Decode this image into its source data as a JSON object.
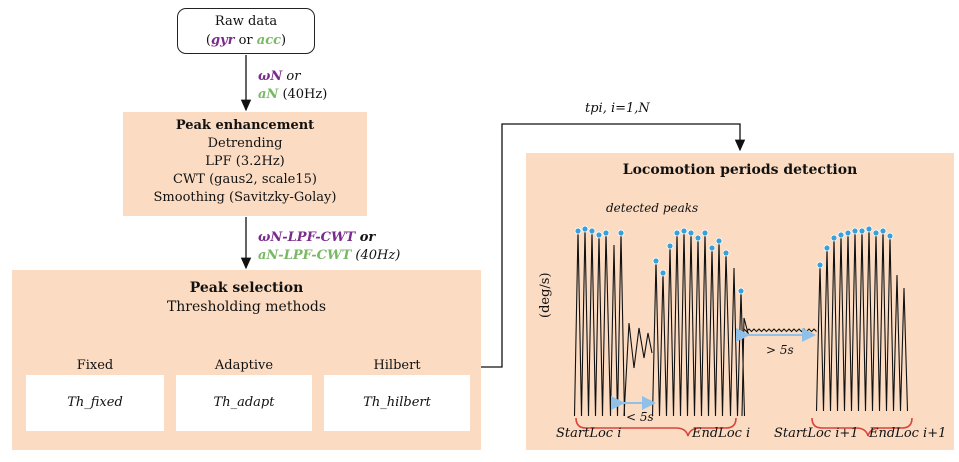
{
  "raw": {
    "title": "Raw data",
    "open": "(",
    "gyr": "gyr",
    "or": " or ",
    "acc": "acc",
    "close": ")"
  },
  "arrow1": {
    "wN": "ωN",
    "or": " or",
    "aN": "aN",
    "rate": " (40Hz)"
  },
  "enhancement": {
    "title": "Peak enhancement",
    "steps": [
      "Detrending",
      "LPF (3.2Hz)",
      "CWT (gaus2, scale15)",
      "Smoothing (Savitzky-Golay)"
    ]
  },
  "arrow2": {
    "line1": "ωN-LPF-CWT",
    "or": " or",
    "line2": "aN-LPF-CWT",
    "rate": " (40Hz)"
  },
  "selection": {
    "title": "Peak selection",
    "subtitle": "Thresholding methods",
    "methods": [
      {
        "name": "Fixed",
        "threshold": "Th_fixed"
      },
      {
        "name": "Adaptive",
        "threshold": "Th_adapt"
      },
      {
        "name": "Hilbert",
        "threshold": "Th_hilbert"
      }
    ]
  },
  "connector_label": "tpi, i=1,N",
  "locomotion": {
    "title": "Locomotion periods detection",
    "detected_peaks": "detected peaks",
    "ylabel": "(deg/s)",
    "gap_short": "< 5s",
    "gap_long": "> 5s",
    "start_i": "StartLoc i",
    "end_i": "EndLoc i",
    "start_i1": "StartLoc i+1",
    "end_i1": "EndLoc i+1"
  },
  "colors": {
    "purple": "#7b2a8e",
    "green": "#7ab865",
    "peach": "#fbdcc3",
    "marker": "#3aa0d8",
    "arrow_blue": "#8fc0ea",
    "brace": "#d9443a"
  }
}
